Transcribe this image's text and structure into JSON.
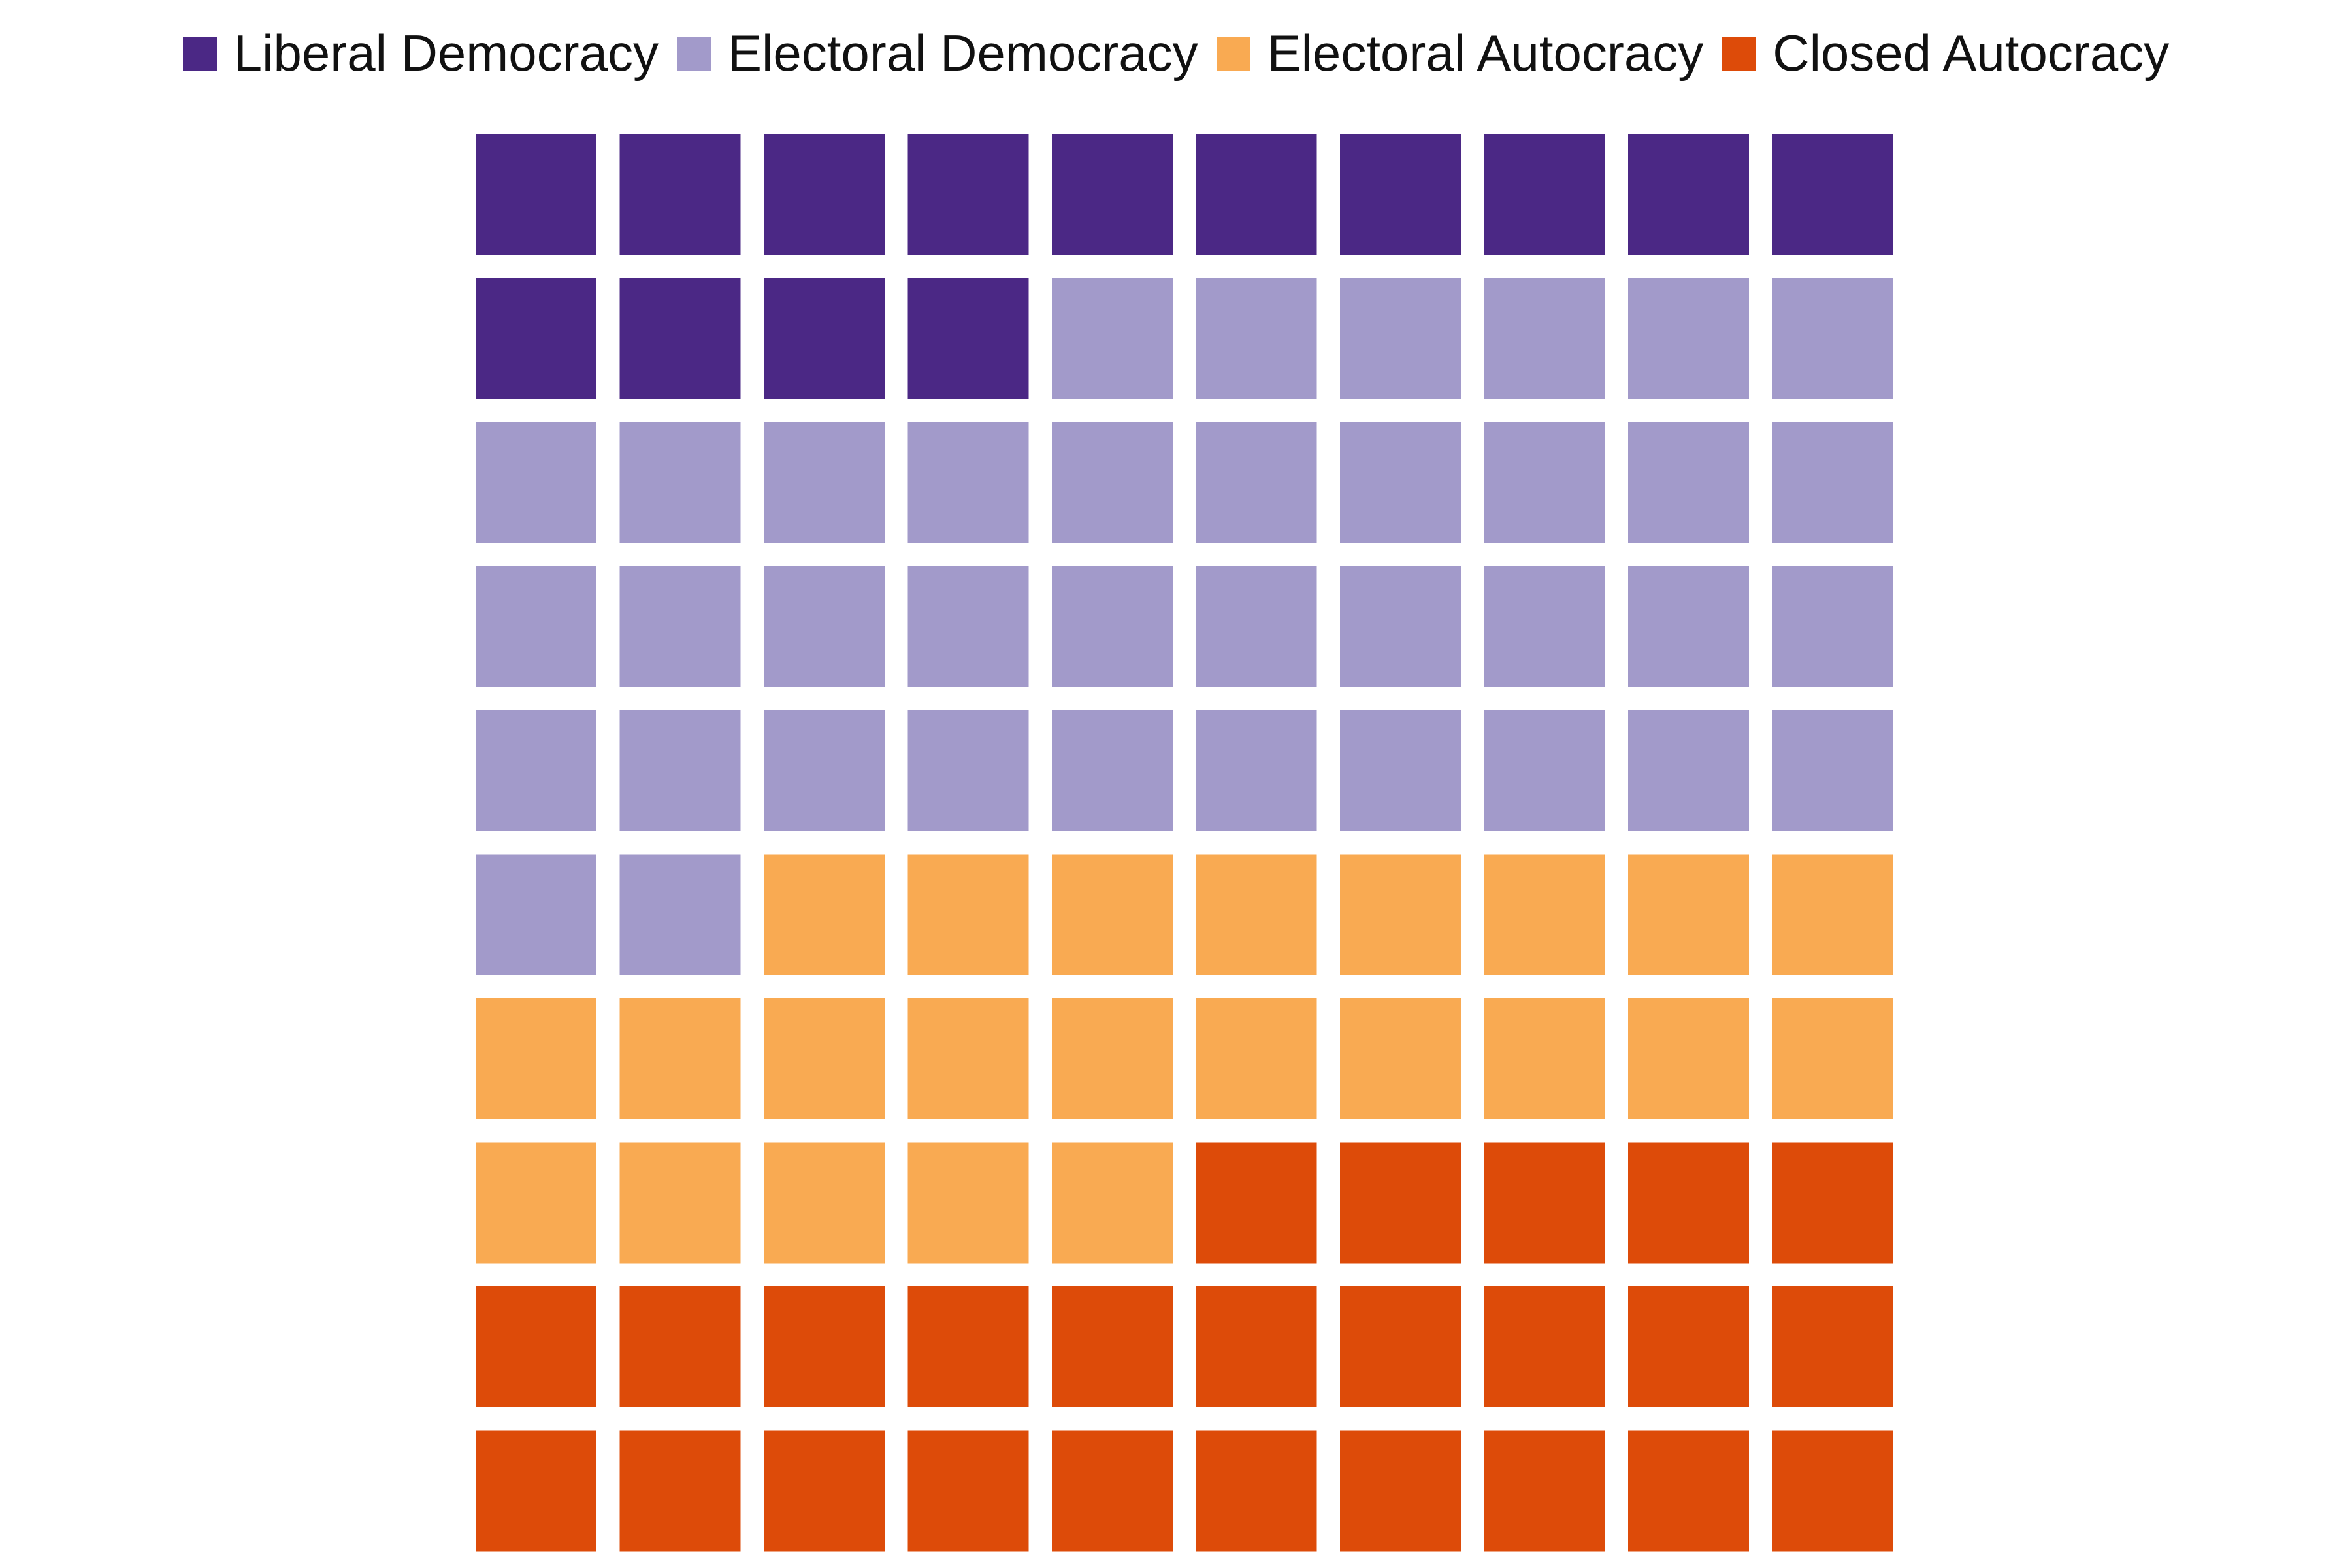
{
  "chart_data": {
    "type": "waffle",
    "rows": 10,
    "cols": 10,
    "fill_order": "row-major, top-left first",
    "categories": [
      {
        "name": "Liberal Democracy",
        "count": 14,
        "color": "#4b2885"
      },
      {
        "name": "Electoral Democracy",
        "count": 38,
        "color": "#a29aca"
      },
      {
        "name": "Electoral Autocracy",
        "count": 23,
        "color": "#f9aa52"
      },
      {
        "name": "Closed Autocracy",
        "count": 25,
        "color": "#dd4b09"
      }
    ],
    "legend_position": "top"
  }
}
